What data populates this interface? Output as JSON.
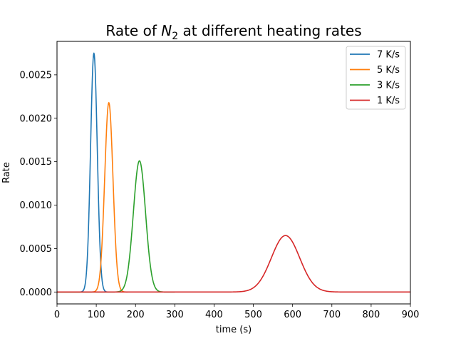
{
  "chart_data": {
    "type": "line",
    "title_prefix": "Rate of ",
    "title_symbol": "N",
    "title_subscript": "2",
    "title_suffix": " at different heating rates",
    "xlabel": "time (s)",
    "ylabel": "Rate",
    "xlim": [
      0,
      900
    ],
    "ylim": [
      -0.000137,
      0.002885
    ],
    "xticks": [
      0,
      100,
      200,
      300,
      400,
      500,
      600,
      700,
      800,
      900
    ],
    "xtick_labels": [
      "0",
      "100",
      "200",
      "300",
      "400",
      "500",
      "600",
      "700",
      "800",
      "900"
    ],
    "yticks": [
      0,
      0.0005,
      0.001,
      0.0015,
      0.002,
      0.0025
    ],
    "ytick_labels": [
      "0.0000",
      "0.0005",
      "0.0010",
      "0.0015",
      "0.0020",
      "0.0025"
    ],
    "grid": false,
    "legend_position": "upper right",
    "series": [
      {
        "name": "7 K/s",
        "color": "#1f77b4",
        "x_start": 0,
        "x_end": 128,
        "peak_x": 94,
        "peak_y": 0.00275,
        "sigma": 8.5
      },
      {
        "name": "5 K/s",
        "color": "#ff7f0e",
        "x_start": 0,
        "x_end": 180,
        "peak_x": 132,
        "peak_y": 0.00218,
        "sigma": 10.5
      },
      {
        "name": "3 K/s",
        "color": "#2ca02c",
        "x_start": 0,
        "x_end": 300,
        "peak_x": 210,
        "peak_y": 0.00151,
        "sigma": 15.5
      },
      {
        "name": "1 K/s",
        "color": "#d62728",
        "x_start": 0,
        "x_end": 900,
        "peak_x": 582,
        "peak_y": 0.00065,
        "sigma": 36
      }
    ]
  }
}
